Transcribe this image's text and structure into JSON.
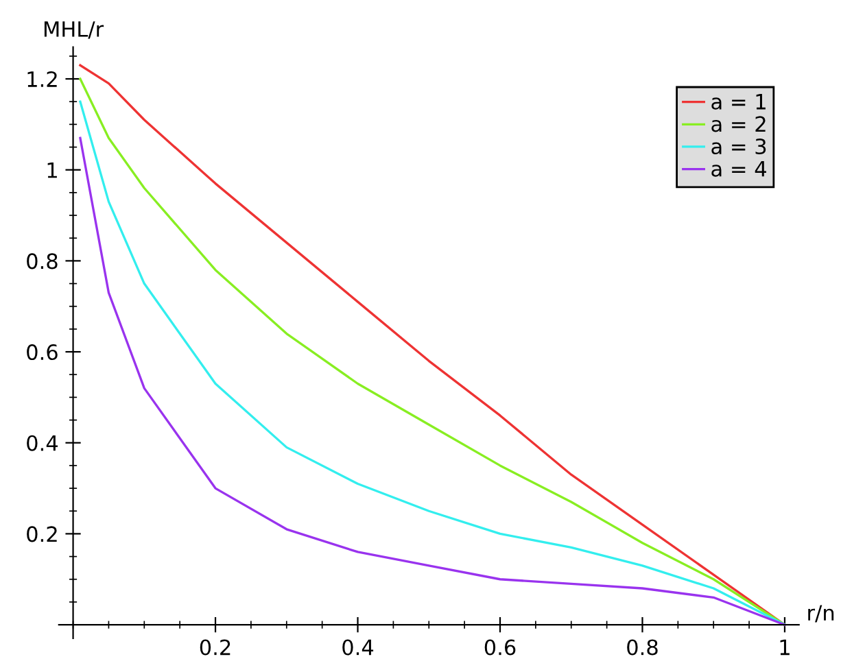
{
  "chart_data": {
    "type": "line",
    "xlabel": "r/n",
    "ylabel": "MHL/r",
    "x": [
      0.01,
      0.05,
      0.1,
      0.2,
      0.3,
      0.4,
      0.5,
      0.6,
      0.7,
      0.8,
      0.9,
      1
    ],
    "series": [
      {
        "name": "a = 1",
        "color": "#ee3333",
        "values": [
          1.23,
          1.19,
          1.11,
          0.97,
          0.84,
          0.71,
          0.58,
          0.46,
          0.33,
          0.22,
          0.11,
          0
        ]
      },
      {
        "name": "a = 2",
        "color": "#88ee22",
        "values": [
          1.2,
          1.07,
          0.96,
          0.78,
          0.64,
          0.53,
          0.44,
          0.35,
          0.27,
          0.18,
          0.1,
          0
        ]
      },
      {
        "name": "a = 3",
        "color": "#33eeee",
        "values": [
          1.15,
          0.93,
          0.75,
          0.53,
          0.39,
          0.31,
          0.25,
          0.2,
          0.17,
          0.13,
          0.08,
          0
        ]
      },
      {
        "name": "a = 4",
        "color": "#9933ee",
        "values": [
          1.07,
          0.73,
          0.52,
          0.3,
          0.21,
          0.16,
          0.13,
          0.1,
          0.09,
          0.08,
          0.06,
          0
        ]
      }
    ],
    "xlim": [
      -0.02,
      1.02
    ],
    "ylim": [
      -0.03,
      1.27
    ],
    "xticks": [
      0.2,
      0.4,
      0.6,
      0.8,
      1
    ],
    "yticks": [
      0.2,
      0.4,
      0.6,
      0.8,
      1,
      1.2
    ],
    "grid": false,
    "legend": "top right",
    "marker": "none",
    "line_style": "solid"
  }
}
